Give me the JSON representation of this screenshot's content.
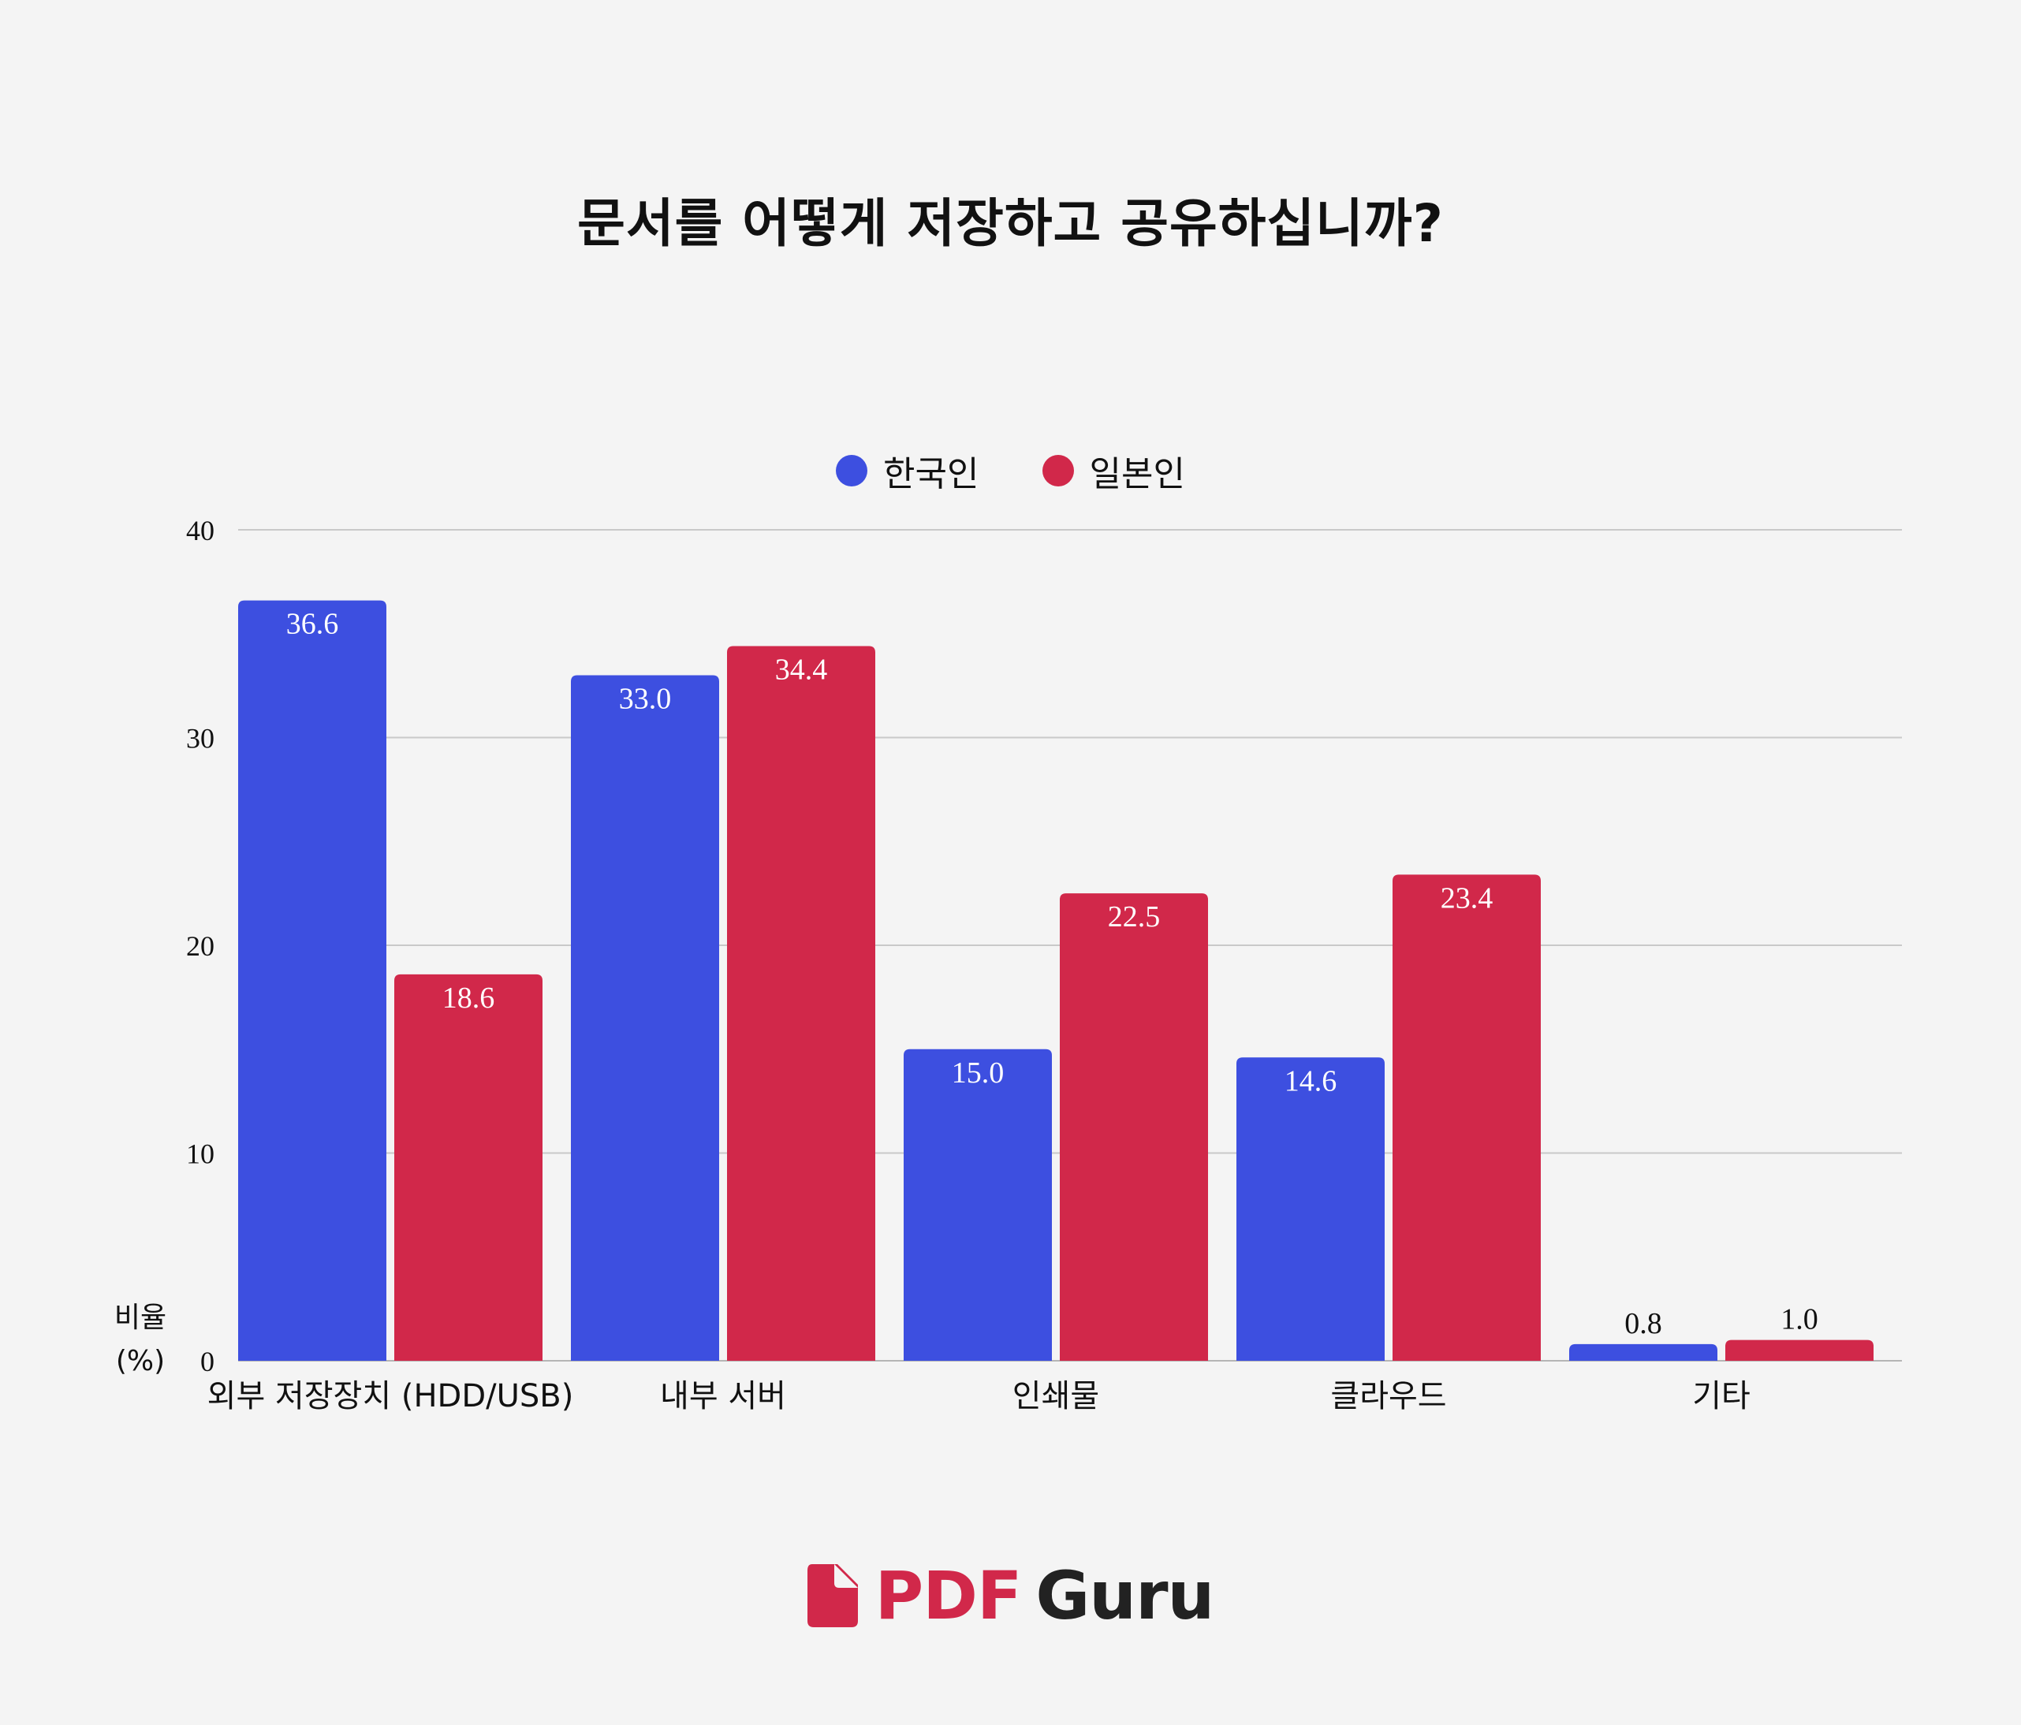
{
  "chart_data": {
    "type": "bar",
    "title": "문서를 어떻게 저장하고 공유하십니까?",
    "categories": [
      "외부 저장장치 (HDD/USB)",
      "내부 서버",
      "인쇄물",
      "클라우드",
      "기타"
    ],
    "series": [
      {
        "name": "한국인",
        "color": "#3d4fe0",
        "values": [
          36.6,
          33.0,
          15.0,
          14.6,
          0.8
        ],
        "labels": [
          "36.6",
          "33.0",
          "15.0",
          "14.6",
          "0.8"
        ]
      },
      {
        "name": "일본인",
        "color": "#d1284a",
        "values": [
          18.6,
          34.4,
          22.5,
          23.4,
          1.0
        ],
        "labels": [
          "18.6",
          "34.4",
          "22.5",
          "23.4",
          "1.0"
        ]
      }
    ],
    "ylabel_line1": "비율",
    "ylabel_line2": "(%)",
    "ylim": [
      0,
      40
    ],
    "yticks": [
      0,
      10,
      20,
      30,
      40
    ],
    "grid": true,
    "legend_position": "top-center"
  },
  "logo": {
    "pdf": "PDF",
    "guru": "Guru",
    "icon": "document-icon",
    "pdf_color": "#d1284a"
  }
}
